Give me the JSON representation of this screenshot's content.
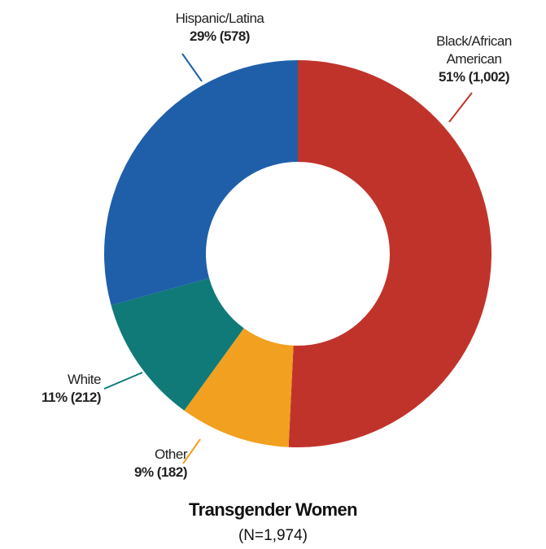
{
  "chart_data": {
    "type": "donut",
    "title": "Transgender Women",
    "subtitle": "(N=1,974)",
    "categories": [
      "Black/African American",
      "Other",
      "White",
      "Hispanic/Latina"
    ],
    "values": [
      1002,
      182,
      212,
      578
    ],
    "value_labels": [
      "51% (1,002)",
      "9% (182)",
      "11% (212)",
      "29% (578)"
    ],
    "colors": [
      "#c0332b",
      "#f2a01f",
      "#0f7a78",
      "#1f5fa9"
    ]
  }
}
